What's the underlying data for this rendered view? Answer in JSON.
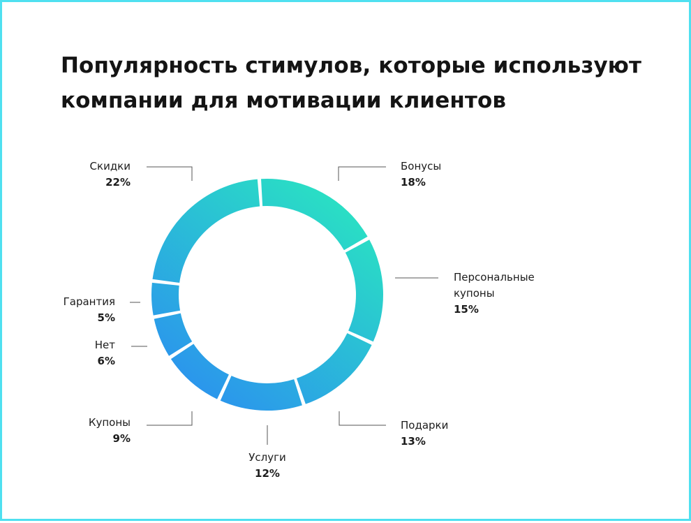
{
  "title": "Популярность стимулов, которые используют компании для мотивации клиентов",
  "colors": {
    "frame_border": "#4fe0f0",
    "gradient_start": "#2ae8bf",
    "gradient_end": "#2b8ff0",
    "leader_line": "#555555",
    "text": "#1c1c1c"
  },
  "chart_data": {
    "type": "pie",
    "variant": "donut",
    "title": "Популярность стимулов, которые используют компании для мотивации клиентов",
    "series": [
      {
        "values": [
          18,
          15,
          13,
          12,
          9,
          6,
          5,
          22
        ],
        "labels": [
          "18%",
          "15%",
          "13%",
          "12%",
          "9%",
          "6%",
          "5%",
          "22%"
        ]
      }
    ],
    "categories": [
      "Бонусы",
      "Персональные купоны",
      "Подарки",
      "Услуги",
      "Купоны",
      "Нет",
      "Гарантия",
      "Скидки"
    ],
    "legend": "none",
    "grid": false
  }
}
